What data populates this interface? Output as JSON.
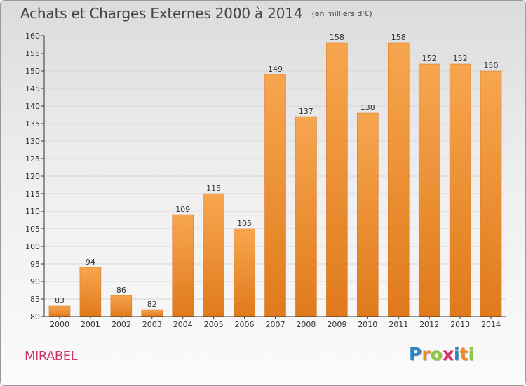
{
  "header": {
    "title": "Achats et Charges Externes 2000 à 2014",
    "subtitle": "(en milliers d'€)"
  },
  "footer": {
    "location": "MIRABEL",
    "logo_text": "Proxiti",
    "logo_letters": [
      {
        "ch": "P",
        "color": "#2a84c6"
      },
      {
        "ch": "r",
        "color": "#f08a1c"
      },
      {
        "ch": "o",
        "color": "#8dc63f"
      },
      {
        "ch": "x",
        "color": "#e0266f"
      },
      {
        "ch": "i",
        "color": "#2a84c6"
      },
      {
        "ch": "t",
        "color": "#f08a1c"
      },
      {
        "ch": "i",
        "color": "#8dc63f"
      }
    ]
  },
  "colors": {
    "bar_top": "#f7a64f",
    "bar_bottom": "#e07a1c",
    "bar_stroke": "#d8741a",
    "grid": "#d7d7d7",
    "axis": "#333333",
    "location": "#cc3366"
  },
  "chart_data": {
    "type": "bar",
    "title": "Achats et Charges Externes 2000 à 2014",
    "subtitle": "(en milliers d'€)",
    "categories": [
      "2000",
      "2001",
      "2002",
      "2003",
      "2004",
      "2005",
      "2006",
      "2007",
      "2008",
      "2009",
      "2010",
      "2011",
      "2012",
      "2013",
      "2014"
    ],
    "values": [
      83,
      94,
      86,
      82,
      109,
      115,
      105,
      149,
      137,
      158,
      138,
      158,
      152,
      152,
      150
    ],
    "ylim": [
      80,
      160
    ],
    "yticks": [
      80,
      85,
      90,
      95,
      100,
      105,
      110,
      115,
      120,
      125,
      130,
      135,
      140,
      145,
      150,
      155,
      160
    ],
    "grid": true,
    "data_labels": true,
    "xlabel": "",
    "ylabel": ""
  }
}
